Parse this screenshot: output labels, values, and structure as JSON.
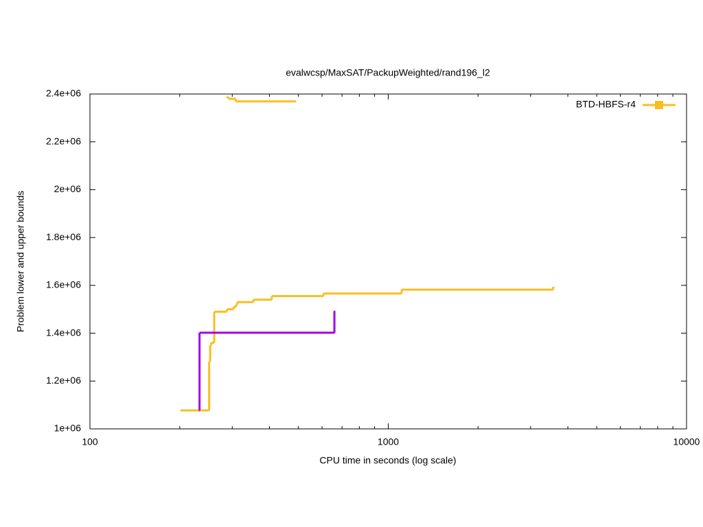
{
  "chart_data": {
    "type": "step",
    "title": "evalwcsp/MaxSAT/PackupWeighted/rand196_l2",
    "x_label": "CPU time in seconds (log scale)",
    "y_label": "Problem lower and upper bounds",
    "xlog": true,
    "xlim": [
      100,
      10000
    ],
    "xticks": [
      100,
      1000,
      10000
    ],
    "ylim": [
      1000000,
      2400000
    ],
    "yticks": [
      {
        "value": 1000000,
        "label": "1e+06"
      },
      {
        "value": 1200000,
        "label": "1.2e+06"
      },
      {
        "value": 1400000,
        "label": "1.4e+06"
      },
      {
        "value": 1600000,
        "label": "1.6e+06"
      },
      {
        "value": 1800000,
        "label": "1.8e+06"
      },
      {
        "value": 2000000,
        "label": "2e+06"
      },
      {
        "value": 2200000,
        "label": "2.2e+06"
      },
      {
        "value": 2400000,
        "label": "2.4e+06"
      }
    ],
    "legend": "top-right",
    "series": [
      {
        "name": "BTD-HBFS-r4",
        "color": "#f9be1f",
        "x": [
          201,
          251,
          253,
          255,
          261,
          288,
          303,
          309,
          312,
          353,
          407,
          606,
          1109,
          3574
        ],
        "values": [
          1077000,
          1280000,
          1350000,
          1360000,
          1490000,
          1500000,
          1510000,
          1520000,
          1530000,
          1540000,
          1555000,
          1566000,
          1582000,
          1594000
        ]
      },
      {
        "color": "#f9be1f",
        "x": [
          287,
          292,
          308,
          490
        ],
        "values": [
          2386000,
          2380000,
          2369000,
          2369000
        ]
      },
      {
        "color": "#a100e6",
        "x": [
          232,
          233,
          660,
          660
        ],
        "values": [
          1077000,
          1402000,
          1402000,
          1493000
        ]
      }
    ]
  }
}
